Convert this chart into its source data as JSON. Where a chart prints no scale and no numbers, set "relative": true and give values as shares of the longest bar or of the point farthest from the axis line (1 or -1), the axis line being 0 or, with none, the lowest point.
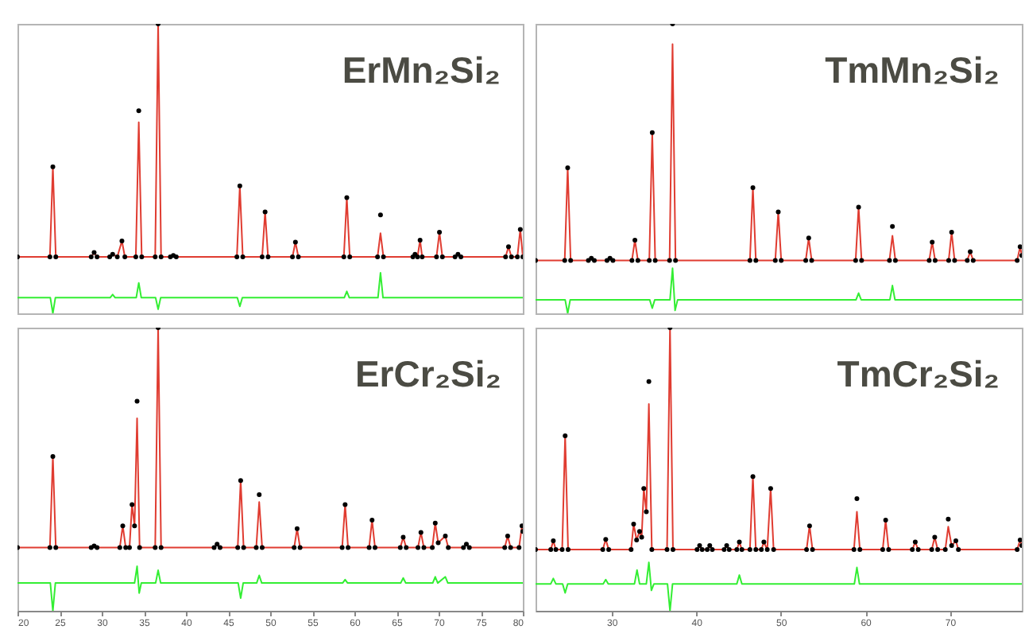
{
  "chart_data": [
    {
      "type": "line",
      "title": "ErMn₂Si₂",
      "relative": true,
      "xlim": [
        20,
        80
      ],
      "tick_labels": false,
      "x": [
        20,
        23.85,
        24.2,
        24.55,
        28.75,
        29.1,
        29.45,
        30.95,
        31.3,
        31.85,
        32.4,
        32.75,
        34.05,
        34.4,
        34.75,
        36.35,
        36.7,
        37.05,
        38.15,
        38.5,
        38.85,
        46.05,
        46.4,
        46.75,
        49.05,
        49.4,
        49.75,
        52.65,
        53.0,
        53.35,
        58.75,
        59.1,
        59.45,
        62.75,
        63.1,
        63.45,
        66.95,
        67.2,
        67.5,
        67.8,
        68.05,
        69.75,
        70.1,
        70.45,
        71.95,
        72.3,
        72.65,
        77.95,
        78.3,
        78.65,
        79.35,
        79.7,
        80
      ],
      "series": [
        {
          "type": "scatter",
          "marker": "circle",
          "color": "#000000",
          "values": [
            0.195,
            0.195,
            0.506,
            0.195,
            0.195,
            0.21,
            0.195,
            0.195,
            0.204,
            0.195,
            0.25,
            0.195,
            0.195,
            0.7,
            0.195,
            0.195,
            1,
            0.195,
            0.195,
            0.2,
            0.195,
            0.195,
            0.44,
            0.195,
            0.195,
            0.35,
            0.195,
            0.195,
            0.246,
            0.195,
            0.195,
            0.4,
            0.195,
            0.195,
            0.34,
            0.195,
            0.195,
            0.204,
            0.195,
            0.253,
            0.195,
            0.195,
            0.28,
            0.195,
            0.195,
            0.204,
            0.195,
            0.195,
            0.23,
            0.195,
            0.195,
            0.29,
            0.195
          ]
        },
        {
          "color": "#e03c31",
          "values": [
            0.195,
            0.195,
            0.506,
            0.195,
            0.195,
            0.21,
            0.195,
            0.195,
            0.204,
            0.195,
            0.25,
            0.195,
            0.195,
            0.66,
            0.195,
            0.195,
            1,
            0.195,
            0.195,
            0.2,
            0.195,
            0.195,
            0.44,
            0.195,
            0.195,
            0.35,
            0.195,
            0.195,
            0.246,
            0.195,
            0.195,
            0.4,
            0.195,
            0.195,
            0.277,
            0.195,
            0.195,
            0.204,
            0.195,
            0.253,
            0.195,
            0.195,
            0.28,
            0.195,
            0.195,
            0.204,
            0.195,
            0.195,
            0.23,
            0.195,
            0.195,
            0.29,
            0.195
          ]
        },
        {
          "color": "#33ee33",
          "x": [
            20,
            23.9,
            24.2,
            24.5,
            31.0,
            31.3,
            31.6,
            34.1,
            34.4,
            34.7,
            36.4,
            36.7,
            37.0,
            46.1,
            46.4,
            46.7,
            58.8,
            59.1,
            59.4,
            62.8,
            63.1,
            63.4,
            80
          ],
          "values": [
            0.054,
            0.054,
            0,
            0.054,
            0.054,
            0.065,
            0.054,
            0.054,
            0.105,
            0.054,
            0.054,
            0.014,
            0.054,
            0.054,
            0.024,
            0.054,
            0.054,
            0.076,
            0.054,
            0.054,
            0.14,
            0.054,
            0.054
          ]
        }
      ]
    },
    {
      "type": "line",
      "title": "TmMn₂Si₂",
      "relative": true,
      "xlim": [
        21,
        78.5
      ],
      "tick_labels": false,
      "x": [
        21,
        24.45,
        24.8,
        25.15,
        27.25,
        27.6,
        27.95,
        29.45,
        29.8,
        30.15,
        32.4,
        32.75,
        33.1,
        34.45,
        34.8,
        35.15,
        36.85,
        37.2,
        37.55,
        46.35,
        46.7,
        47.05,
        49.35,
        49.7,
        50.05,
        52.95,
        53.3,
        53.65,
        58.85,
        59.2,
        59.55,
        62.85,
        63.2,
        63.55,
        67.55,
        67.9,
        68.25,
        69.85,
        70.2,
        70.55,
        72.05,
        72.4,
        72.75,
        77.95,
        78.3,
        78.5
      ],
      "series": [
        {
          "type": "scatter",
          "marker": "circle",
          "color": "#000000",
          "values": [
            0.183,
            0.183,
            0.503,
            0.183,
            0.183,
            0.19,
            0.183,
            0.183,
            0.19,
            0.183,
            0.183,
            0.253,
            0.183,
            0.183,
            0.624,
            0.183,
            0.183,
            1,
            0.183,
            0.183,
            0.434,
            0.183,
            0.183,
            0.35,
            0.183,
            0.183,
            0.26,
            0.183,
            0.183,
            0.367,
            0.183,
            0.183,
            0.3,
            0.183,
            0.183,
            0.246,
            0.183,
            0.183,
            0.28,
            0.183,
            0.183,
            0.213,
            0.183,
            0.183,
            0.23,
            0.2
          ]
        },
        {
          "color": "#e03c31",
          "values": [
            0.183,
            0.183,
            0.503,
            0.183,
            0.183,
            0.19,
            0.183,
            0.183,
            0.19,
            0.183,
            0.183,
            0.253,
            0.183,
            0.183,
            0.624,
            0.183,
            0.183,
            0.93,
            0.183,
            0.183,
            0.434,
            0.183,
            0.183,
            0.35,
            0.183,
            0.183,
            0.26,
            0.183,
            0.183,
            0.367,
            0.183,
            0.183,
            0.268,
            0.183,
            0.183,
            0.246,
            0.183,
            0.183,
            0.28,
            0.183,
            0.183,
            0.213,
            0.183,
            0.183,
            0.23,
            0.2
          ]
        },
        {
          "color": "#33ee33",
          "x": [
            21,
            24.5,
            24.8,
            25.1,
            34.5,
            34.8,
            35.1,
            36.9,
            37.2,
            37.5,
            37.8,
            58.9,
            59.2,
            59.5,
            62.9,
            63.2,
            63.5,
            78.5
          ],
          "values": [
            0.047,
            0.047,
            0,
            0.047,
            0.047,
            0.018,
            0.047,
            0.047,
            0.156,
            0.01,
            0.047,
            0.047,
            0.07,
            0.047,
            0.047,
            0.096,
            0.047,
            0.047
          ]
        }
      ]
    },
    {
      "type": "line",
      "title": "ErCr₂Si₂",
      "relative": true,
      "xlim": [
        20,
        80
      ],
      "xticks": [
        20,
        25,
        30,
        35,
        40,
        45,
        50,
        55,
        60,
        65,
        70,
        75,
        80
      ],
      "tick_labels": "x",
      "x": [
        20,
        23.85,
        24.2,
        24.55,
        28.75,
        29.1,
        29.45,
        32.15,
        32.5,
        32.85,
        33.3,
        33.6,
        33.9,
        34.2,
        34.5,
        36.35,
        36.7,
        37.05,
        43.35,
        43.7,
        44.05,
        46.15,
        46.5,
        46.85,
        48.35,
        48.7,
        49.05,
        52.85,
        53.2,
        53.55,
        58.55,
        58.9,
        59.25,
        61.75,
        62.1,
        62.45,
        65.45,
        65.8,
        66.15,
        67.55,
        67.9,
        68.25,
        69.25,
        69.6,
        69.95,
        70.8,
        71.15,
        72.95,
        73.3,
        73.65,
        77.85,
        78.2,
        78.55,
        79.55,
        79.9,
        80
      ],
      "series": [
        {
          "type": "scatter",
          "marker": "circle",
          "color": "#000000",
          "values": [
            0.223,
            0.223,
            0.545,
            0.223,
            0.223,
            0.229,
            0.223,
            0.223,
            0.3,
            0.223,
            0.223,
            0.375,
            0.3,
            0.74,
            0.223,
            0.223,
            1,
            0.223,
            0.223,
            0.235,
            0.223,
            0.223,
            0.46,
            0.223,
            0.223,
            0.41,
            0.223,
            0.223,
            0.29,
            0.223,
            0.223,
            0.375,
            0.223,
            0.223,
            0.32,
            0.223,
            0.223,
            0.26,
            0.223,
            0.223,
            0.277,
            0.223,
            0.223,
            0.31,
            0.24,
            0.264,
            0.223,
            0.223,
            0.235,
            0.223,
            0.223,
            0.264,
            0.223,
            0.223,
            0.3,
            0.28
          ]
        },
        {
          "color": "#e03c31",
          "values": [
            0.223,
            0.223,
            0.545,
            0.223,
            0.223,
            0.229,
            0.223,
            0.223,
            0.3,
            0.223,
            0.223,
            0.375,
            0.3,
            0.68,
            0.223,
            0.223,
            1,
            0.223,
            0.223,
            0.235,
            0.223,
            0.223,
            0.46,
            0.223,
            0.223,
            0.384,
            0.223,
            0.223,
            0.29,
            0.223,
            0.223,
            0.375,
            0.223,
            0.223,
            0.32,
            0.223,
            0.223,
            0.26,
            0.223,
            0.223,
            0.277,
            0.223,
            0.223,
            0.31,
            0.24,
            0.264,
            0.223,
            0.223,
            0.235,
            0.223,
            0.223,
            0.264,
            0.223,
            0.223,
            0.3,
            0.28
          ]
        },
        {
          "color": "#33ee33",
          "x": [
            20,
            23.9,
            24.2,
            24.5,
            33.9,
            34.2,
            34.45,
            34.7,
            36.4,
            36.7,
            37.0,
            46.2,
            46.5,
            46.8,
            48.4,
            48.7,
            49.0,
            58.6,
            58.9,
            59.2,
            65.5,
            65.8,
            66.1,
            69.3,
            69.6,
            69.9,
            70.8,
            71.1,
            80
          ],
          "values": [
            0.098,
            0.098,
            0,
            0.098,
            0.098,
            0.157,
            0.0625,
            0.098,
            0.098,
            0.143,
            0.098,
            0.098,
            0.045,
            0.098,
            0.098,
            0.125,
            0.098,
            0.098,
            0.11,
            0.098,
            0.098,
            0.116,
            0.098,
            0.098,
            0.12,
            0.098,
            0.12,
            0.098,
            0.098
          ]
        }
      ]
    },
    {
      "type": "line",
      "title": "TmCr₂Si₂",
      "relative": true,
      "xlim": [
        21,
        78.5
      ],
      "xticks": [
        30,
        40,
        50,
        60,
        70
      ],
      "tick_labels": "x",
      "x": [
        21,
        22.8,
        23.1,
        23.4,
        24.15,
        24.5,
        24.85,
        28.95,
        29.3,
        29.65,
        32.3,
        32.6,
        32.95,
        33.3,
        33.55,
        33.8,
        34.1,
        34.4,
        34.75,
        36.55,
        36.9,
        37.25,
        40.1,
        40.4,
        40.7,
        41.3,
        41.6,
        41.9,
        43.3,
        43.6,
        43.9,
        44.8,
        45.1,
        45.4,
        46.35,
        46.7,
        47.05,
        47.7,
        48.0,
        48.4,
        48.8,
        49.15,
        53.05,
        53.4,
        53.75,
        58.65,
        59.0,
        59.35,
        62.05,
        62.4,
        62.75,
        65.55,
        65.9,
        66.25,
        67.85,
        68.2,
        68.55,
        69.45,
        69.8,
        70.2,
        70.7,
        71.0,
        77.95,
        78.3,
        78.5
      ],
      "series": [
        {
          "type": "scatter",
          "marker": "circle",
          "color": "#000000",
          "values": [
            0.216,
            0.216,
            0.247,
            0.216,
            0.216,
            0.618,
            0.216,
            0.216,
            0.252,
            0.216,
            0.216,
            0.306,
            0.25,
            0.28,
            0.26,
            0.432,
            0.35,
            0.81,
            0.216,
            0.216,
            1,
            0.216,
            0.216,
            0.23,
            0.216,
            0.216,
            0.23,
            0.216,
            0.216,
            0.23,
            0.216,
            0.216,
            0.243,
            0.216,
            0.216,
            0.474,
            0.216,
            0.216,
            0.243,
            0.216,
            0.432,
            0.216,
            0.216,
            0.3,
            0.216,
            0.216,
            0.396,
            0.216,
            0.216,
            0.32,
            0.216,
            0.216,
            0.243,
            0.216,
            0.216,
            0.26,
            0.216,
            0.216,
            0.324,
            0.23,
            0.247,
            0.216,
            0.216,
            0.25,
            0.23
          ]
        },
        {
          "color": "#e03c31",
          "values": [
            0.216,
            0.216,
            0.247,
            0.216,
            0.216,
            0.618,
            0.216,
            0.216,
            0.252,
            0.216,
            0.216,
            0.306,
            0.25,
            0.28,
            0.26,
            0.432,
            0.35,
            0.73,
            0.216,
            0.216,
            1,
            0.216,
            0.216,
            0.23,
            0.216,
            0.216,
            0.23,
            0.216,
            0.216,
            0.23,
            0.216,
            0.216,
            0.243,
            0.216,
            0.216,
            0.474,
            0.216,
            0.216,
            0.243,
            0.216,
            0.432,
            0.216,
            0.216,
            0.3,
            0.216,
            0.216,
            0.35,
            0.216,
            0.216,
            0.32,
            0.216,
            0.216,
            0.243,
            0.216,
            0.216,
            0.26,
            0.216,
            0.216,
            0.297,
            0.23,
            0.247,
            0.216,
            0.216,
            0.25,
            0.23
          ]
        },
        {
          "color": "#33ee33",
          "x": [
            21,
            22.8,
            23.1,
            23.4,
            24.2,
            24.5,
            24.8,
            29.0,
            29.3,
            29.6,
            32.7,
            33.0,
            33.3,
            34.1,
            34.4,
            34.7,
            35.0,
            36.6,
            36.9,
            37.2,
            44.8,
            45.1,
            45.4,
            58.7,
            59.0,
            59.3,
            78.5
          ],
          "values": [
            0.095,
            0.095,
            0.114,
            0.095,
            0.095,
            0.063,
            0.095,
            0.095,
            0.11,
            0.095,
            0.095,
            0.144,
            0.095,
            0.095,
            0.171,
            0.072,
            0.095,
            0.095,
            0,
            0.095,
            0.095,
            0.126,
            0.095,
            0.095,
            0.153,
            0.095,
            0.095
          ]
        }
      ]
    }
  ]
}
